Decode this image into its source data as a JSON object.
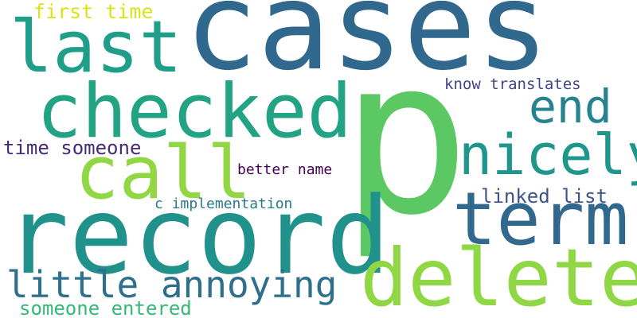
{
  "words": [
    {
      "id": "w-cases",
      "text": "cases",
      "color": "#31688e"
    },
    {
      "id": "w-p",
      "text": "p",
      "color": "#5cc863"
    },
    {
      "id": "w-record",
      "text": "record",
      "color": "#21918c"
    },
    {
      "id": "w-delete",
      "text": "delete",
      "color": "#8fd744"
    },
    {
      "id": "w-term",
      "text": "term",
      "color": "#31688e"
    },
    {
      "id": "w-checked",
      "text": "checked",
      "color": "#22a384"
    },
    {
      "id": "w-last",
      "text": "last",
      "color": "#1f9e89"
    },
    {
      "id": "w-call",
      "text": "call",
      "color": "#90d743"
    },
    {
      "id": "w-nicely",
      "text": "nicely",
      "color": "#1f968b"
    },
    {
      "id": "w-end",
      "text": "end",
      "color": "#26828e"
    },
    {
      "id": "w-little",
      "text": "little annoying",
      "color": "#2e6f8e"
    },
    {
      "id": "w-first",
      "text": "first time",
      "color": "#dce319"
    },
    {
      "id": "w-time",
      "text": "time someone",
      "color": "#482878"
    },
    {
      "id": "w-linked",
      "text": "linked list",
      "color": "#3b528b"
    },
    {
      "id": "w-entered",
      "text": "someone entered",
      "color": "#35b779"
    },
    {
      "id": "w-know",
      "text": "know translates",
      "color": "#414487"
    },
    {
      "id": "w-better",
      "text": "better name",
      "color": "#440154"
    },
    {
      "id": "w-cimpl",
      "text": "c implementation",
      "color": "#2a788e"
    }
  ]
}
